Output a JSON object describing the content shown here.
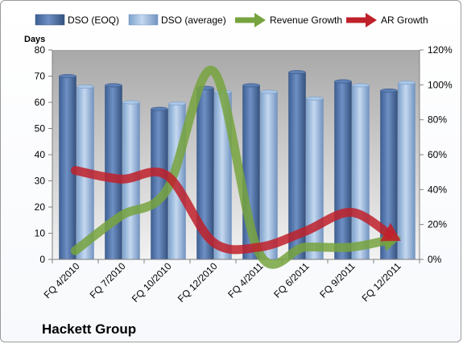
{
  "footer": {
    "company": "Hackett Group"
  },
  "chart_data": {
    "type": "bar",
    "title": "",
    "ylabel": "Days",
    "y2label": "",
    "xlabel": "",
    "categories": [
      "FQ 4/2010",
      "FQ 7/2010",
      "FQ 10/2010",
      "FQ 12/2010",
      "FQ 4/2011",
      "FQ 6/2011",
      "FQ 9/2011",
      "FQ 12/2011"
    ],
    "ylim": [
      0,
      80
    ],
    "y_ticks": [
      "0",
      "10",
      "20",
      "30",
      "40",
      "50",
      "60",
      "70",
      "80"
    ],
    "y2lim": [
      0,
      120
    ],
    "y2_ticks": [
      "0%",
      "20%",
      "40%",
      "60%",
      "80%",
      "100%",
      "120%"
    ],
    "grid": false,
    "legend": {
      "placement": "top"
    },
    "series": [
      {
        "name": "DSO (EOQ)",
        "kind": "bar",
        "axis": "left",
        "color": "#4a6fa5",
        "values": [
          70,
          66.5,
          57.5,
          65.5,
          66.5,
          71.5,
          68,
          64.5
        ]
      },
      {
        "name": "DSO (average)",
        "kind": "bar",
        "axis": "left",
        "color": "#93b6dc",
        "values": [
          66,
          60,
          59.5,
          64,
          64,
          61.5,
          66.5,
          67.5
        ]
      },
      {
        "name": "Revenue Growth",
        "kind": "line",
        "axis": "right",
        "unit": "%",
        "color": "#77a33e",
        "values": [
          5,
          25,
          40,
          108,
          4,
          7,
          7,
          12
        ]
      },
      {
        "name": "AR Growth",
        "kind": "line",
        "axis": "right",
        "unit": "%",
        "color": "#c0202a",
        "values": [
          51,
          46,
          48,
          10,
          7,
          16,
          27,
          12
        ]
      }
    ]
  }
}
